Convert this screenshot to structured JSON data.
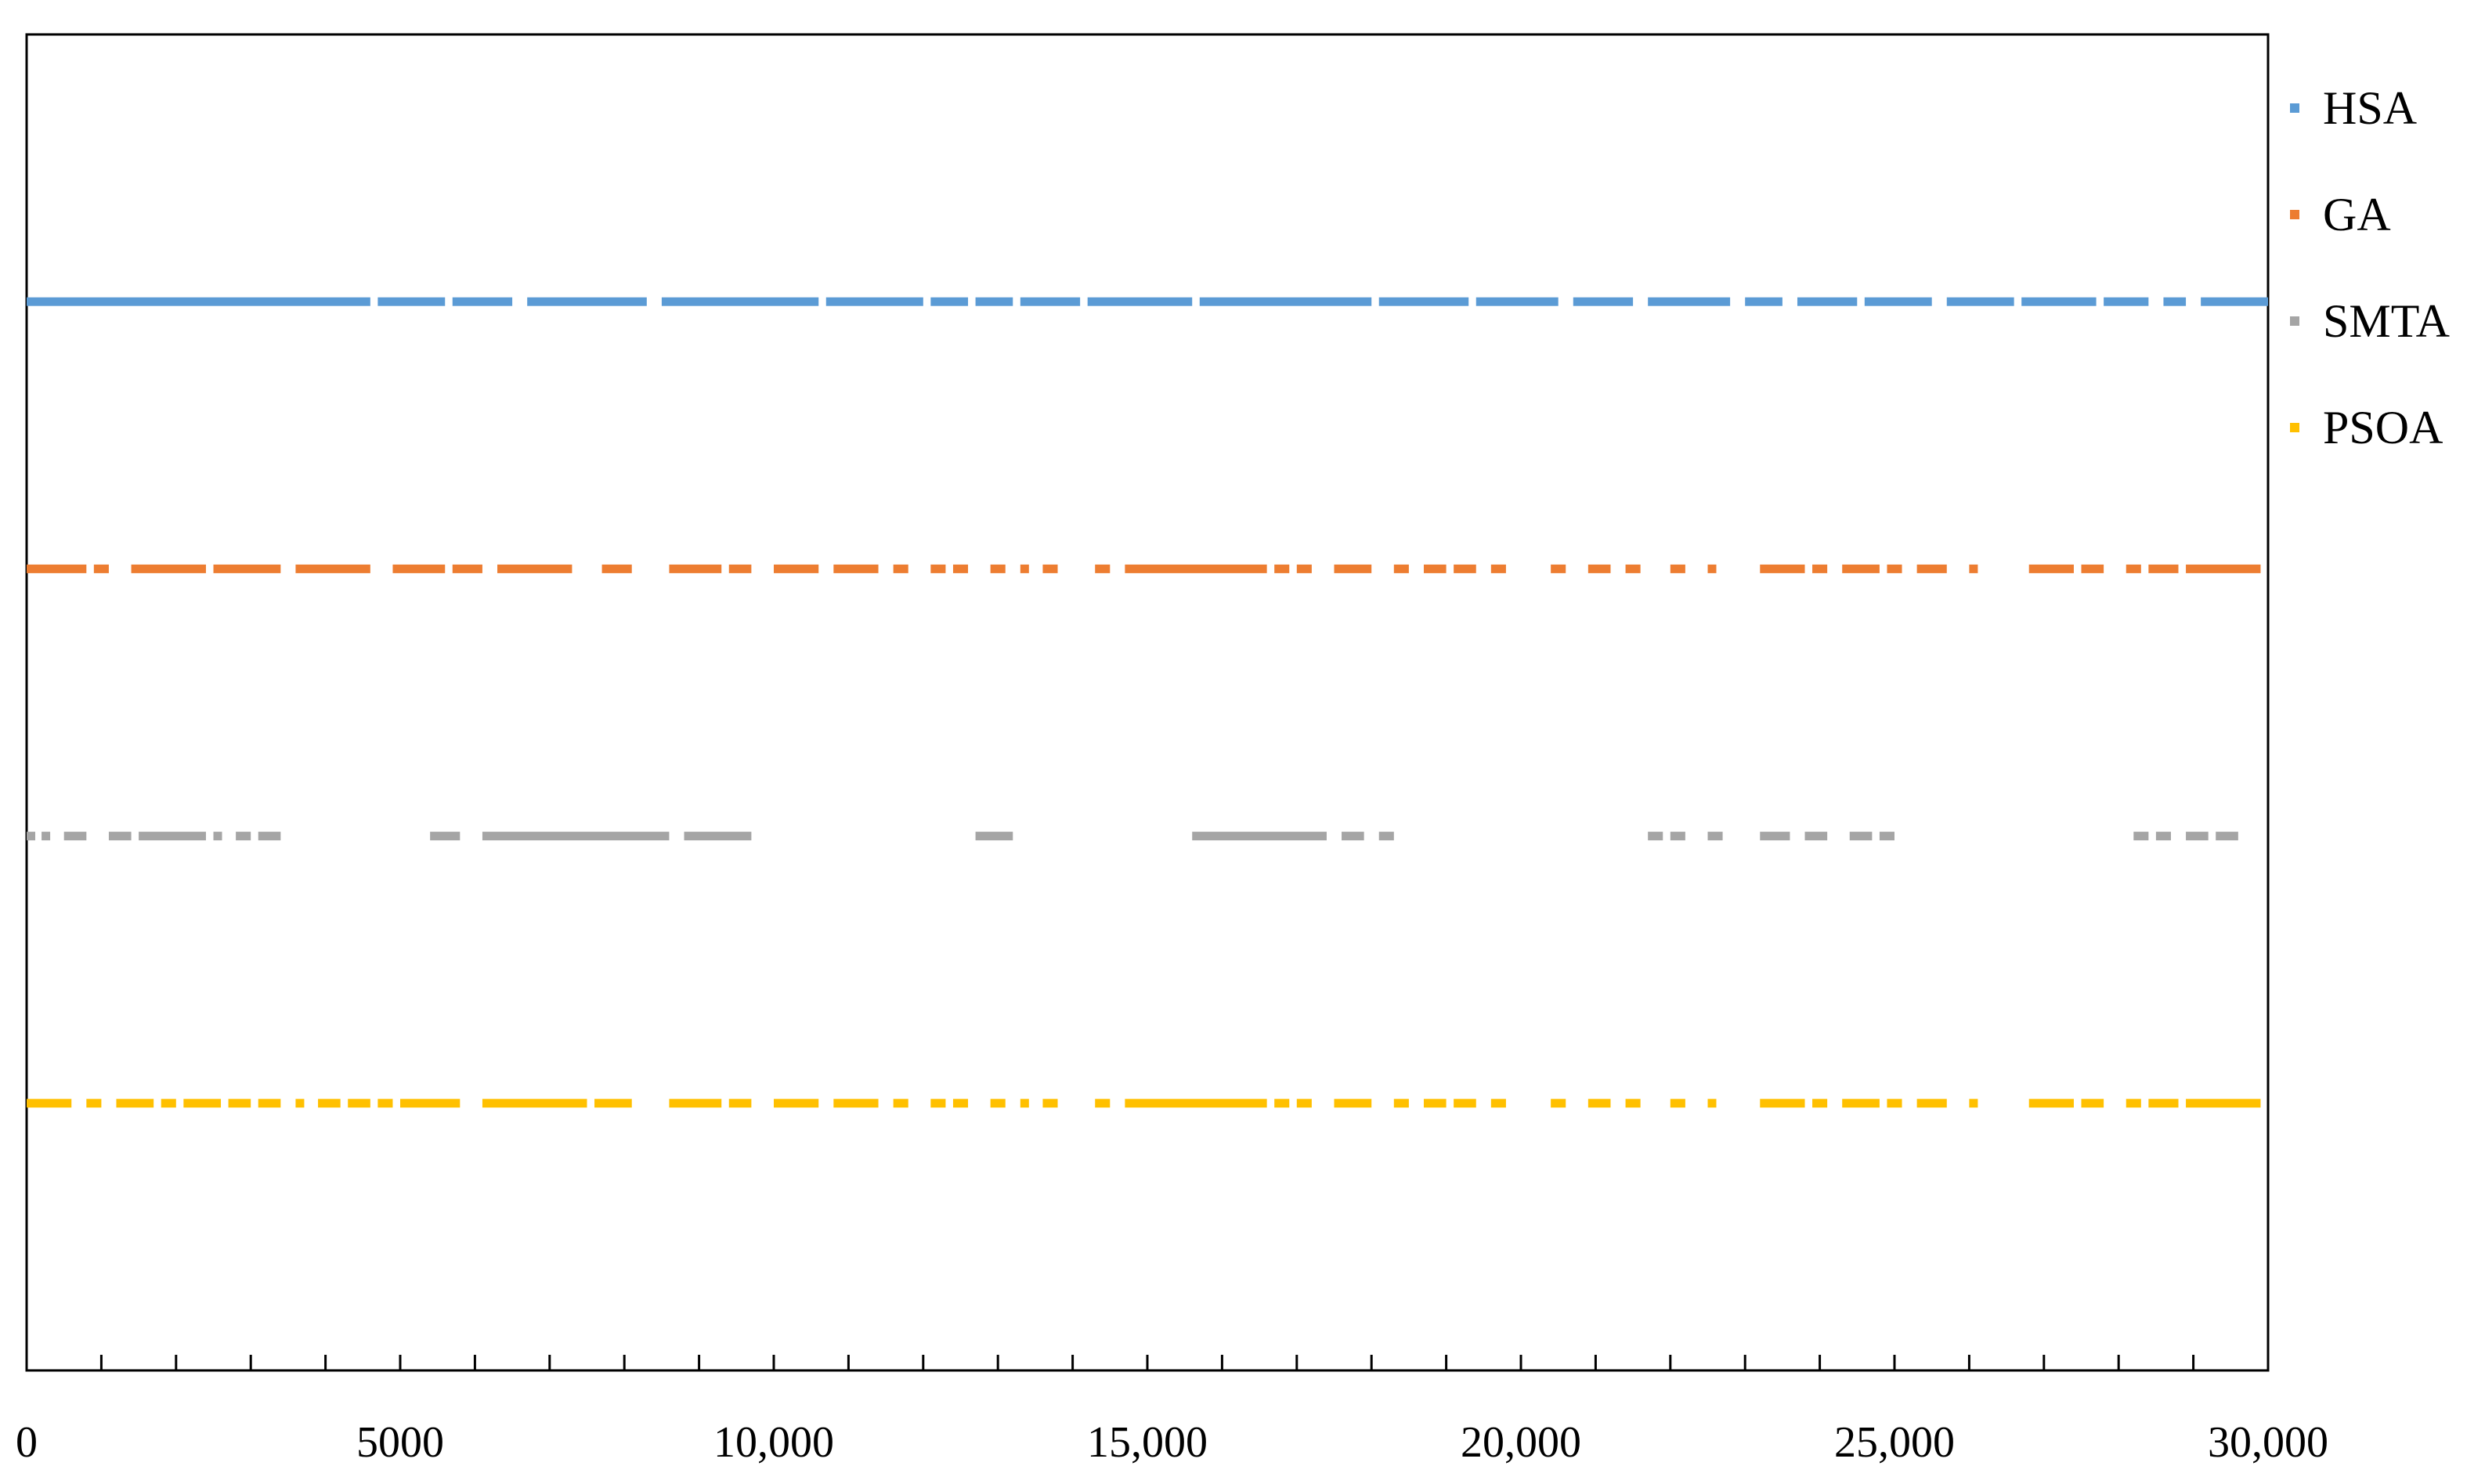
{
  "chart_data": {
    "type": "scatter",
    "title": "",
    "xlabel": "",
    "ylabel": "",
    "xlim": [
      0,
      30000
    ],
    "ylim": [
      0,
      5
    ],
    "grid": false,
    "legend_position": "top-right",
    "x_ticks": [
      0,
      5000,
      10000,
      15000,
      20000,
      25000,
      30000
    ],
    "x_tick_labels": [
      "0",
      "5000",
      "10,000",
      "15,000",
      "20,000",
      "25,000",
      "30,000"
    ],
    "y_ticks": [],
    "series": [
      {
        "name": "HSA",
        "color": "#5B9BD5",
        "y": 4,
        "segments": [
          [
            0,
            4600
          ],
          [
            4700,
            5600
          ],
          [
            5700,
            6500
          ],
          [
            6700,
            8300
          ],
          [
            8500,
            10600
          ],
          [
            10700,
            12000
          ],
          [
            12100,
            12600
          ],
          [
            12700,
            13200
          ],
          [
            13300,
            14100
          ],
          [
            14200,
            15600
          ],
          [
            15700,
            18000
          ],
          [
            18100,
            19300
          ],
          [
            19400,
            20500
          ],
          [
            20700,
            21500
          ],
          [
            21700,
            22800
          ],
          [
            23000,
            23500
          ],
          [
            23700,
            24500
          ],
          [
            24600,
            25500
          ],
          [
            25700,
            26600
          ],
          [
            26700,
            27700
          ],
          [
            27800,
            28400
          ],
          [
            28600,
            28900
          ],
          [
            29100,
            30000
          ]
        ]
      },
      {
        "name": "GA",
        "color": "#ED7D31",
        "y": 3,
        "segments": [
          [
            0,
            800
          ],
          [
            900,
            1100
          ],
          [
            1400,
            2400
          ],
          [
            2500,
            3400
          ],
          [
            3600,
            4600
          ],
          [
            4900,
            5600
          ],
          [
            5700,
            6100
          ],
          [
            6300,
            7300
          ],
          [
            7700,
            8100
          ],
          [
            8600,
            9300
          ],
          [
            9400,
            9700
          ],
          [
            10000,
            10600
          ],
          [
            10800,
            11400
          ],
          [
            11600,
            11800
          ],
          [
            12100,
            12300
          ],
          [
            12400,
            12600
          ],
          [
            12900,
            13100
          ],
          [
            13300,
            13400
          ],
          [
            13600,
            13800
          ],
          [
            14300,
            14500
          ],
          [
            14700,
            16600
          ],
          [
            16700,
            16900
          ],
          [
            17000,
            17200
          ],
          [
            17500,
            18000
          ],
          [
            18300,
            18500
          ],
          [
            18700,
            19000
          ],
          [
            19100,
            19400
          ],
          [
            19600,
            19800
          ],
          [
            20400,
            20600
          ],
          [
            20900,
            21200
          ],
          [
            21400,
            21600
          ],
          [
            22000,
            22200
          ],
          [
            22500,
            22600
          ],
          [
            23200,
            23800
          ],
          [
            23900,
            24100
          ],
          [
            24300,
            24800
          ],
          [
            24900,
            25100
          ],
          [
            25300,
            25700
          ],
          [
            26000,
            26100
          ],
          [
            26800,
            27400
          ],
          [
            27500,
            27800
          ],
          [
            28100,
            28300
          ],
          [
            28400,
            28800
          ],
          [
            28900,
            29900
          ]
        ]
      },
      {
        "name": "SMTA",
        "color": "#A5A5A5",
        "y": 2,
        "segments": [
          [
            0,
            100
          ],
          [
            200,
            300
          ],
          [
            500,
            800
          ],
          [
            1100,
            1400
          ],
          [
            1500,
            2400
          ],
          [
            2500,
            2600
          ],
          [
            2800,
            3000
          ],
          [
            3100,
            3400
          ],
          [
            5400,
            5800
          ],
          [
            6100,
            8600
          ],
          [
            8800,
            9700
          ],
          [
            12700,
            13200
          ],
          [
            15600,
            17400
          ],
          [
            17600,
            17900
          ],
          [
            18100,
            18300
          ],
          [
            21700,
            21900
          ],
          [
            22000,
            22200
          ],
          [
            22500,
            22700
          ],
          [
            23200,
            23600
          ],
          [
            23800,
            24100
          ],
          [
            24400,
            24700
          ],
          [
            24800,
            25000
          ],
          [
            28200,
            28400
          ],
          [
            28500,
            28700
          ],
          [
            28900,
            29200
          ],
          [
            29300,
            29600
          ]
        ]
      },
      {
        "name": "PSOA",
        "color": "#FFC000",
        "y": 1,
        "segments": [
          [
            0,
            600
          ],
          [
            800,
            1000
          ],
          [
            1200,
            1700
          ],
          [
            1800,
            2000
          ],
          [
            2100,
            2600
          ],
          [
            2700,
            3000
          ],
          [
            3100,
            3400
          ],
          [
            3600,
            3700
          ],
          [
            3900,
            4200
          ],
          [
            4300,
            4600
          ],
          [
            4700,
            4900
          ],
          [
            5000,
            5800
          ],
          [
            6100,
            7500
          ],
          [
            7600,
            8100
          ],
          [
            8600,
            9300
          ],
          [
            9400,
            9700
          ],
          [
            10000,
            10600
          ],
          [
            10800,
            11400
          ],
          [
            11600,
            11800
          ],
          [
            12100,
            12300
          ],
          [
            12400,
            12600
          ],
          [
            12900,
            13100
          ],
          [
            13300,
            13400
          ],
          [
            13600,
            13800
          ],
          [
            14300,
            14500
          ],
          [
            14700,
            16600
          ],
          [
            16700,
            16900
          ],
          [
            17000,
            17200
          ],
          [
            17500,
            18000
          ],
          [
            18300,
            18500
          ],
          [
            18700,
            19000
          ],
          [
            19100,
            19400
          ],
          [
            19600,
            19800
          ],
          [
            20400,
            20600
          ],
          [
            20900,
            21200
          ],
          [
            21400,
            21600
          ],
          [
            22000,
            22200
          ],
          [
            22500,
            22600
          ],
          [
            23200,
            23800
          ],
          [
            23900,
            24100
          ],
          [
            24300,
            24800
          ],
          [
            24900,
            25100
          ],
          [
            25300,
            25700
          ],
          [
            26000,
            26100
          ],
          [
            26800,
            27400
          ],
          [
            27500,
            27800
          ],
          [
            28100,
            28300
          ],
          [
            28400,
            28800
          ],
          [
            28900,
            29900
          ]
        ]
      }
    ]
  }
}
